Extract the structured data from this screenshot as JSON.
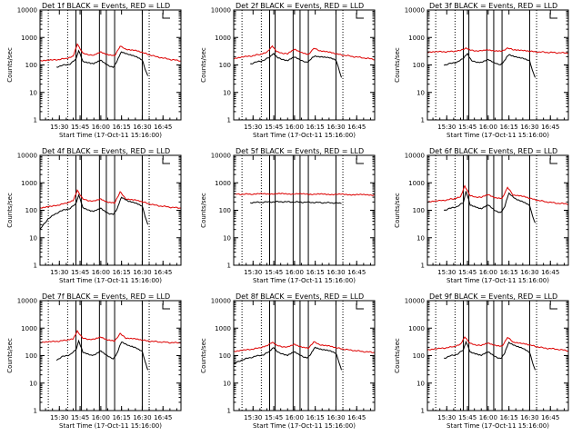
{
  "colors": {
    "events": "#000000",
    "lld": "#dd0000",
    "axis": "#000000",
    "background": "#ffffff"
  },
  "common": {
    "xlabel": "Start Time (17-Oct-11 15:16:00)",
    "ylabel": "Counts/sec",
    "x_tick_labels": [
      "15:30",
      "15:45",
      "16:00",
      "16:15",
      "16:30",
      "16:45"
    ],
    "y_tick_labels": [
      "1",
      "10",
      "100",
      "1000",
      "10000"
    ],
    "y_scale": "log",
    "ylim": [
      1,
      10000
    ],
    "xlim": [
      "15:16",
      "16:58"
    ]
  },
  "chart_data": [
    {
      "type": "line",
      "title": "Det 1f  BLACK = Events, RED = LLD",
      "xlabel": "Start Time (17-Oct-11 15:16:00)",
      "ylabel": "Counts/sec",
      "dotted_lines": [
        "15:22",
        "15:36",
        "16:35"
      ],
      "solid_lines": [
        "15:42",
        "15:46",
        "15:59",
        "16:04",
        "16:10",
        "16:30"
      ],
      "series": [
        {
          "name": "LLD",
          "color": "#dd0000",
          "x": [
            "15:16",
            "15:25",
            "15:35",
            "15:40",
            "15:43",
            "15:47",
            "15:55",
            "16:00",
            "16:05",
            "16:10",
            "16:14",
            "16:18",
            "16:25",
            "16:30",
            "16:40",
            "16:50",
            "16:58"
          ],
          "y": [
            140,
            150,
            170,
            200,
            600,
            260,
            220,
            300,
            240,
            210,
            500,
            360,
            330,
            280,
            200,
            160,
            140
          ]
        },
        {
          "name": "Events",
          "color": "#000000",
          "x": [
            "15:28",
            "15:32",
            "15:38",
            "15:42",
            "15:44",
            "15:47",
            "15:52",
            "15:55",
            "16:00",
            "16:05",
            "16:09",
            "16:12",
            "16:15",
            "16:20",
            "16:25",
            "16:30",
            "16:32",
            "16:34"
          ],
          "y": [
            85,
            95,
            110,
            160,
            350,
            130,
            120,
            110,
            150,
            100,
            80,
            150,
            300,
            250,
            200,
            150,
            70,
            40
          ]
        }
      ]
    },
    {
      "type": "line",
      "title": "Det 2f  BLACK = Events, RED = LLD",
      "xlabel": "Start Time (17-Oct-11 15:16:00)",
      "ylabel": "Counts/sec",
      "dotted_lines": [
        "15:22",
        "15:36",
        "16:35"
      ],
      "solid_lines": [
        "15:42",
        "15:46",
        "15:59",
        "16:04",
        "16:10",
        "16:30"
      ],
      "series": [
        {
          "name": "LLD",
          "color": "#dd0000",
          "x": [
            "15:16",
            "15:25",
            "15:35",
            "15:40",
            "15:44",
            "15:47",
            "15:55",
            "16:00",
            "16:05",
            "16:10",
            "16:14",
            "16:18",
            "16:25",
            "16:30",
            "16:40",
            "16:50",
            "16:58"
          ],
          "y": [
            170,
            200,
            240,
            280,
            500,
            300,
            250,
            380,
            290,
            230,
            420,
            320,
            290,
            250,
            210,
            180,
            160
          ]
        },
        {
          "name": "Events",
          "color": "#000000",
          "x": [
            "15:28",
            "15:32",
            "15:38",
            "15:42",
            "15:45",
            "15:48",
            "15:52",
            "15:55",
            "16:00",
            "16:05",
            "16:09",
            "16:12",
            "16:15",
            "16:20",
            "16:25",
            "16:30",
            "16:32",
            "16:34"
          ],
          "y": [
            110,
            125,
            150,
            190,
            260,
            180,
            160,
            140,
            200,
            150,
            120,
            170,
            210,
            200,
            180,
            150,
            70,
            35
          ]
        }
      ]
    },
    {
      "type": "line",
      "title": "Det 3f  BLACK = Events, RED = LLD",
      "xlabel": "Start Time (17-Oct-11 15:16:00)",
      "ylabel": "Counts/sec",
      "dotted_lines": [
        "15:22",
        "15:36",
        "16:35"
      ],
      "solid_lines": [
        "15:42",
        "15:46",
        "15:59",
        "16:04",
        "16:10",
        "16:30"
      ],
      "series": [
        {
          "name": "LLD",
          "color": "#dd0000",
          "x": [
            "15:16",
            "15:25",
            "15:35",
            "15:40",
            "15:44",
            "15:47",
            "15:55",
            "16:00",
            "16:05",
            "16:10",
            "16:14",
            "16:18",
            "16:25",
            "16:30",
            "16:40",
            "16:50",
            "16:58"
          ],
          "y": [
            290,
            300,
            310,
            330,
            420,
            340,
            320,
            360,
            330,
            310,
            420,
            350,
            330,
            310,
            290,
            280,
            270
          ]
        },
        {
          "name": "Events",
          "color": "#000000",
          "x": [
            "15:28",
            "15:32",
            "15:38",
            "15:42",
            "15:45",
            "15:48",
            "15:52",
            "15:55",
            "16:00",
            "16:05",
            "16:09",
            "16:12",
            "16:15",
            "16:20",
            "16:25",
            "16:30",
            "16:32",
            "16:34"
          ],
          "y": [
            100,
            110,
            130,
            170,
            260,
            140,
            130,
            120,
            160,
            120,
            100,
            150,
            240,
            200,
            170,
            140,
            60,
            35
          ]
        }
      ]
    },
    {
      "type": "line",
      "title": "Det 4f  BLACK = Events, RED = LLD",
      "xlabel": "Start Time (17-Oct-11 15:16:00)",
      "ylabel": "Counts/sec",
      "dotted_lines": [
        "15:22",
        "15:36",
        "16:35"
      ],
      "solid_lines": [
        "15:42",
        "15:46",
        "15:59",
        "16:04",
        "16:10",
        "16:30"
      ],
      "series": [
        {
          "name": "LLD",
          "color": "#dd0000",
          "x": [
            "15:16",
            "15:25",
            "15:35",
            "15:40",
            "15:43",
            "15:47",
            "15:55",
            "16:00",
            "16:05",
            "16:10",
            "16:14",
            "16:18",
            "16:25",
            "16:30",
            "16:40",
            "16:50",
            "16:58"
          ],
          "y": [
            120,
            140,
            180,
            220,
            550,
            250,
            210,
            260,
            200,
            180,
            480,
            250,
            230,
            200,
            150,
            130,
            120
          ]
        },
        {
          "name": "Events",
          "color": "#000000",
          "x": [
            "15:16",
            "15:22",
            "15:30",
            "15:38",
            "15:42",
            "15:44",
            "15:47",
            "15:52",
            "15:55",
            "16:00",
            "16:05",
            "16:09",
            "16:12",
            "16:15",
            "16:20",
            "16:25",
            "16:30",
            "16:32",
            "16:34"
          ],
          "y": [
            20,
            50,
            90,
            120,
            170,
            380,
            120,
            100,
            90,
            120,
            80,
            70,
            120,
            300,
            220,
            180,
            140,
            60,
            30
          ]
        }
      ]
    },
    {
      "type": "line",
      "title": "Det 5f  BLACK = Events, RED = LLD",
      "xlabel": "Start Time (17-Oct-11 15:16:00)",
      "ylabel": "Counts/sec",
      "dotted_lines": [
        "15:22",
        "15:36",
        "16:35"
      ],
      "solid_lines": [
        "15:42",
        "15:46",
        "15:59",
        "16:04",
        "16:10",
        "16:30"
      ],
      "series": [
        {
          "name": "LLD",
          "color": "#dd0000",
          "x": [
            "15:16",
            "15:30",
            "15:45",
            "16:00",
            "16:15",
            "16:30",
            "16:45",
            "16:58"
          ],
          "y": [
            380,
            390,
            400,
            395,
            385,
            380,
            370,
            360
          ]
        },
        {
          "name": "Events",
          "color": "#000000",
          "x": [
            "15:28",
            "15:40",
            "15:50",
            "16:00",
            "16:10",
            "16:20",
            "16:30",
            "16:34"
          ],
          "y": [
            190,
            200,
            205,
            200,
            195,
            190,
            185,
            175
          ]
        }
      ]
    },
    {
      "type": "line",
      "title": "Det 6f  BLACK = Events, RED = LLD",
      "xlabel": "Start Time (17-Oct-11 15:16:00)",
      "ylabel": "Counts/sec",
      "dotted_lines": [
        "15:22",
        "15:36",
        "16:35"
      ],
      "solid_lines": [
        "15:42",
        "15:46",
        "15:59",
        "16:04",
        "16:10",
        "16:30"
      ],
      "series": [
        {
          "name": "LLD",
          "color": "#dd0000",
          "x": [
            "15:16",
            "15:25",
            "15:35",
            "15:40",
            "15:43",
            "15:47",
            "15:55",
            "16:00",
            "16:05",
            "16:10",
            "16:14",
            "16:18",
            "16:25",
            "16:30",
            "16:40",
            "16:50",
            "16:58"
          ],
          "y": [
            200,
            220,
            260,
            300,
            800,
            330,
            290,
            380,
            290,
            260,
            700,
            350,
            320,
            270,
            210,
            180,
            170
          ]
        },
        {
          "name": "Events",
          "color": "#000000",
          "x": [
            "15:28",
            "15:32",
            "15:38",
            "15:42",
            "15:44",
            "15:47",
            "15:52",
            "15:55",
            "16:00",
            "16:05",
            "16:09",
            "16:12",
            "16:15",
            "16:20",
            "16:25",
            "16:30",
            "16:32",
            "16:34"
          ],
          "y": [
            100,
            115,
            140,
            190,
            500,
            150,
            130,
            110,
            160,
            100,
            80,
            140,
            420,
            260,
            200,
            150,
            60,
            35
          ]
        }
      ]
    },
    {
      "type": "line",
      "title": "Det 7f  BLACK = Events, RED = LLD",
      "xlabel": "Start Time (17-Oct-11 15:16:00)",
      "ylabel": "Counts/sec",
      "dotted_lines": [
        "15:22",
        "15:36",
        "16:35"
      ],
      "solid_lines": [
        "15:42",
        "15:46",
        "15:59",
        "16:04",
        "16:10",
        "16:30"
      ],
      "series": [
        {
          "name": "LLD",
          "color": "#dd0000",
          "x": [
            "15:16",
            "15:25",
            "15:35",
            "15:40",
            "15:43",
            "15:47",
            "15:55",
            "16:00",
            "16:05",
            "16:10",
            "16:14",
            "16:18",
            "16:25",
            "16:30",
            "16:40",
            "16:50",
            "16:58"
          ],
          "y": [
            300,
            320,
            360,
            400,
            800,
            420,
            380,
            480,
            380,
            330,
            650,
            420,
            400,
            360,
            320,
            300,
            290
          ]
        },
        {
          "name": "Events",
          "color": "#000000",
          "x": [
            "15:28",
            "15:32",
            "15:38",
            "15:42",
            "15:44",
            "15:47",
            "15:52",
            "15:55",
            "16:00",
            "16:05",
            "16:09",
            "16:12",
            "16:15",
            "16:20",
            "16:25",
            "16:30",
            "16:32",
            "16:34"
          ],
          "y": [
            70,
            90,
            110,
            160,
            350,
            130,
            110,
            100,
            150,
            100,
            75,
            130,
            320,
            240,
            190,
            140,
            60,
            30
          ]
        }
      ]
    },
    {
      "type": "line",
      "title": "Det 8f  BLACK = Events, RED = LLD",
      "xlabel": "Start Time (17-Oct-11 15:16:00)",
      "ylabel": "Counts/sec",
      "dotted_lines": [
        "15:22",
        "15:36",
        "16:35"
      ],
      "solid_lines": [
        "15:42",
        "15:46",
        "15:59",
        "16:04",
        "16:10",
        "16:30"
      ],
      "series": [
        {
          "name": "LLD",
          "color": "#dd0000",
          "x": [
            "15:16",
            "15:25",
            "15:35",
            "15:40",
            "15:44",
            "15:47",
            "15:55",
            "16:00",
            "16:05",
            "16:10",
            "16:14",
            "16:18",
            "16:25",
            "16:30",
            "16:40",
            "16:50",
            "16:58"
          ],
          "y": [
            140,
            160,
            190,
            220,
            320,
            230,
            200,
            260,
            210,
            180,
            330,
            240,
            220,
            190,
            160,
            140,
            130
          ]
        },
        {
          "name": "Events",
          "color": "#000000",
          "x": [
            "15:16",
            "15:22",
            "15:30",
            "15:38",
            "15:42",
            "15:45",
            "15:48",
            "15:52",
            "15:55",
            "16:00",
            "16:05",
            "16:09",
            "16:12",
            "16:15",
            "16:20",
            "16:25",
            "16:30",
            "16:32",
            "16:34"
          ],
          "y": [
            50,
            70,
            90,
            110,
            140,
            200,
            130,
            115,
            100,
            140,
            100,
            80,
            120,
            200,
            170,
            150,
            120,
            60,
            30
          ]
        }
      ]
    },
    {
      "type": "line",
      "title": "Det 9f  BLACK = Events, RED = LLD",
      "xlabel": "Start Time (17-Oct-11 15:16:00)",
      "ylabel": "Counts/sec",
      "dotted_lines": [
        "15:22",
        "15:36",
        "16:35"
      ],
      "solid_lines": [
        "15:42",
        "15:46",
        "15:59",
        "16:04",
        "16:10",
        "16:30"
      ],
      "series": [
        {
          "name": "LLD",
          "color": "#dd0000",
          "x": [
            "15:16",
            "15:25",
            "15:35",
            "15:40",
            "15:43",
            "15:47",
            "15:55",
            "16:00",
            "16:05",
            "16:10",
            "16:14",
            "16:18",
            "16:25",
            "16:30",
            "16:40",
            "16:50",
            "16:58"
          ],
          "y": [
            160,
            180,
            210,
            250,
            500,
            270,
            230,
            290,
            240,
            210,
            480,
            300,
            270,
            240,
            190,
            170,
            150
          ]
        },
        {
          "name": "Events",
          "color": "#000000",
          "x": [
            "15:28",
            "15:32",
            "15:38",
            "15:42",
            "15:44",
            "15:47",
            "15:52",
            "15:55",
            "16:00",
            "16:05",
            "16:09",
            "16:12",
            "16:15",
            "16:20",
            "16:25",
            "16:30",
            "16:32",
            "16:34"
          ],
          "y": [
            80,
            95,
            115,
            160,
            330,
            130,
            115,
            100,
            140,
            95,
            75,
            130,
            300,
            230,
            180,
            130,
            55,
            30
          ]
        }
      ]
    }
  ]
}
